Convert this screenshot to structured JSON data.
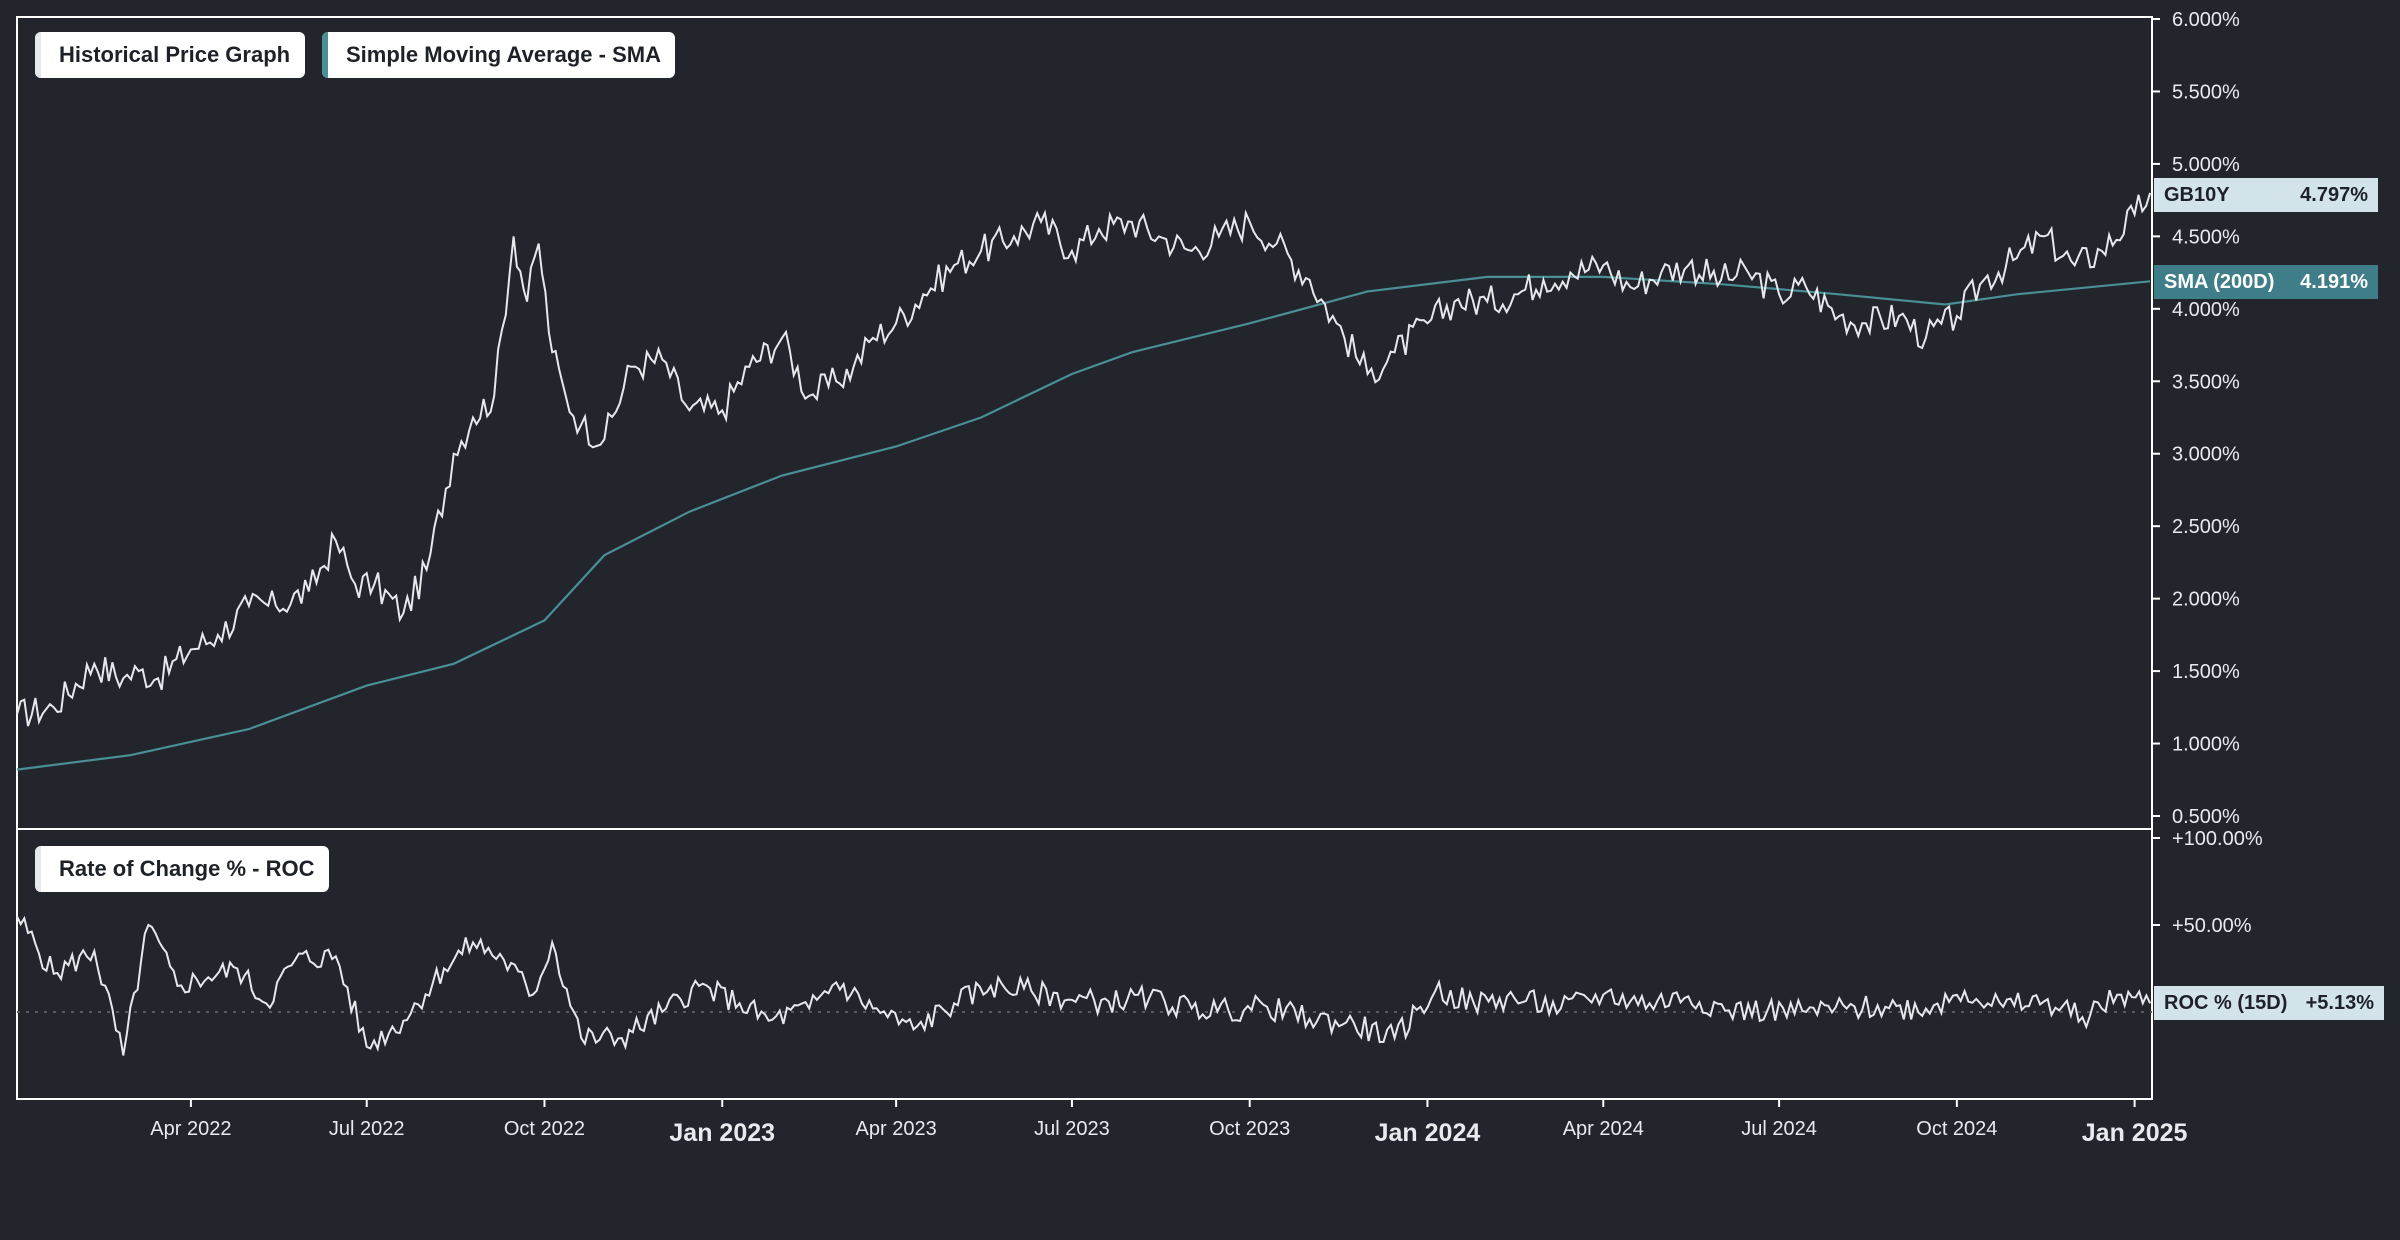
{
  "legends": {
    "price": "Historical Price Graph",
    "sma": "Simple Moving Average - SMA",
    "roc": "Rate of Change % - ROC"
  },
  "tags": {
    "price": {
      "label": "GB10Y",
      "value": "4.797%"
    },
    "sma": {
      "label": "SMA (200D)",
      "value": "4.191%"
    },
    "roc": {
      "label": "ROC % (15D)",
      "value": "+5.13%"
    }
  },
  "colors": {
    "background": "#22252b",
    "price_line": "#e6e8ec",
    "sma_line": "#4a8e96",
    "tag_light": "#d3e3ea",
    "tag_sma": "#3f7d88",
    "frame": "#ffffff"
  },
  "chart_data": [
    {
      "type": "line",
      "title": "",
      "xlabel": "",
      "ylabel": "",
      "ylim": [
        0.5,
        6.0
      ],
      "grid": false,
      "legend": "top-left",
      "y_tick_labels": [
        "6.000%",
        "5.500%",
        "5.000%",
        "4.500%",
        "4.000%",
        "3.500%",
        "3.000%",
        "2.500%",
        "2.000%",
        "1.500%",
        "1.000%",
        "0.500%"
      ],
      "x_tick_labels": [
        "Apr 2022",
        "Jul 2022",
        "Oct 2022",
        "Jan 2023",
        "Apr 2023",
        "Jul 2023",
        "Oct 2023",
        "Jan 2024",
        "Apr 2024",
        "Jul 2024",
        "Oct 2024",
        "Jan 2025"
      ],
      "x_tick_dates": [
        "2022-04-01",
        "2022-07-01",
        "2022-10-01",
        "2023-01-01",
        "2023-04-01",
        "2023-07-01",
        "2023-10-01",
        "2024-01-01",
        "2024-04-01",
        "2024-07-01",
        "2024-10-01",
        "2025-01-01"
      ],
      "x_range": [
        "2022-01-01",
        "2025-01-10"
      ],
      "series": [
        {
          "name": "GB10Y",
          "x": [
            "2022-01-01",
            "2022-01-20",
            "2022-02-10",
            "2022-02-25",
            "2022-03-05",
            "2022-03-15",
            "2022-04-01",
            "2022-04-15",
            "2022-05-01",
            "2022-05-15",
            "2022-06-01",
            "2022-06-15",
            "2022-06-25",
            "2022-07-05",
            "2022-07-20",
            "2022-08-01",
            "2022-08-15",
            "2022-08-25",
            "2022-09-05",
            "2022-09-15",
            "2022-09-22",
            "2022-09-28",
            "2022-10-05",
            "2022-10-12",
            "2022-10-20",
            "2022-11-01",
            "2022-11-15",
            "2022-12-01",
            "2022-12-15",
            "2023-01-01",
            "2023-01-15",
            "2023-02-01",
            "2023-02-15",
            "2023-03-01",
            "2023-03-10",
            "2023-03-20",
            "2023-04-01",
            "2023-04-15",
            "2023-05-01",
            "2023-05-15",
            "2023-06-01",
            "2023-06-15",
            "2023-07-01",
            "2023-07-15",
            "2023-08-01",
            "2023-08-15",
            "2023-09-01",
            "2023-09-15",
            "2023-10-01",
            "2023-10-15",
            "2023-11-01",
            "2023-11-15",
            "2023-12-01",
            "2023-12-15",
            "2024-01-01",
            "2024-01-15",
            "2024-02-01",
            "2024-02-15",
            "2024-03-01",
            "2024-03-15",
            "2024-04-01",
            "2024-04-15",
            "2024-05-01",
            "2024-05-15",
            "2024-06-01",
            "2024-06-15",
            "2024-07-01",
            "2024-07-15",
            "2024-08-01",
            "2024-08-15",
            "2024-09-01",
            "2024-09-15",
            "2024-10-01",
            "2024-10-15",
            "2024-11-01",
            "2024-11-15",
            "2024-12-01",
            "2024-12-15",
            "2025-01-01",
            "2025-01-09"
          ],
          "values": [
            1.2,
            1.25,
            1.55,
            1.45,
            1.5,
            1.45,
            1.65,
            1.75,
            1.95,
            1.95,
            2.05,
            2.4,
            2.1,
            2.1,
            1.9,
            2.2,
            3.0,
            3.25,
            3.4,
            4.5,
            4.05,
            4.45,
            3.7,
            3.4,
            3.2,
            3.1,
            3.6,
            3.65,
            3.3,
            3.3,
            3.6,
            3.8,
            3.4,
            3.5,
            3.6,
            3.8,
            3.9,
            4.1,
            4.3,
            4.4,
            4.5,
            4.6,
            4.4,
            4.55,
            4.6,
            4.5,
            4.4,
            4.5,
            4.6,
            4.45,
            4.2,
            3.9,
            3.55,
            3.7,
            3.9,
            4.05,
            4.05,
            4.1,
            4.2,
            4.25,
            4.3,
            4.15,
            4.25,
            4.3,
            4.2,
            4.25,
            4.1,
            4.15,
            3.95,
            3.9,
            3.95,
            3.8,
            3.95,
            4.2,
            4.35,
            4.5,
            4.3,
            4.4,
            4.65,
            4.8
          ]
        },
        {
          "name": "SMA (200D)",
          "x": [
            "2022-01-01",
            "2022-03-01",
            "2022-05-01",
            "2022-07-01",
            "2022-08-15",
            "2022-10-01",
            "2022-11-01",
            "2022-12-15",
            "2023-02-01",
            "2023-04-01",
            "2023-05-15",
            "2023-07-01",
            "2023-08-01",
            "2023-10-01",
            "2023-12-01",
            "2024-02-01",
            "2024-04-01",
            "2024-06-01",
            "2024-08-01",
            "2024-09-25",
            "2024-11-01",
            "2025-01-09"
          ],
          "values": [
            0.82,
            0.92,
            1.1,
            1.4,
            1.55,
            1.85,
            2.3,
            2.6,
            2.85,
            3.05,
            3.25,
            3.55,
            3.7,
            3.9,
            4.12,
            4.22,
            4.22,
            4.17,
            4.1,
            4.03,
            4.1,
            4.19
          ]
        }
      ]
    },
    {
      "type": "line",
      "title": "",
      "xlabel": "",
      "ylabel": "",
      "ylim": [
        -50,
        100
      ],
      "grid": false,
      "legend": "top-left",
      "y_tick_labels": [
        "+100.00%",
        "+50.00%"
      ],
      "series": [
        {
          "name": "ROC % (15D)",
          "x": [
            "2022-01-01",
            "2022-01-20",
            "2022-02-10",
            "2022-02-25",
            "2022-03-10",
            "2022-03-25",
            "2022-04-10",
            "2022-04-25",
            "2022-05-10",
            "2022-05-25",
            "2022-06-15",
            "2022-07-01",
            "2022-07-20",
            "2022-08-10",
            "2022-08-25",
            "2022-09-10",
            "2022-09-25",
            "2022-10-05",
            "2022-10-20",
            "2022-11-10",
            "2022-12-01",
            "2022-12-20",
            "2023-01-10",
            "2023-01-25",
            "2023-02-15",
            "2023-03-01",
            "2023-03-20",
            "2023-04-10",
            "2023-05-01",
            "2023-05-20",
            "2023-06-10",
            "2023-07-01",
            "2023-07-20",
            "2023-08-10",
            "2023-09-01",
            "2023-09-20",
            "2023-10-10",
            "2023-11-01",
            "2023-11-20",
            "2023-12-15",
            "2024-01-05",
            "2024-01-25",
            "2024-02-15",
            "2024-03-10",
            "2024-04-01",
            "2024-04-25",
            "2024-05-15",
            "2024-06-05",
            "2024-06-25",
            "2024-07-15",
            "2024-08-05",
            "2024-08-25",
            "2024-09-15",
            "2024-10-05",
            "2024-10-25",
            "2024-11-15",
            "2024-12-05",
            "2024-12-25",
            "2025-01-09"
          ],
          "values": [
            55,
            22,
            35,
            -25,
            50,
            15,
            20,
            25,
            5,
            30,
            32,
            -20,
            -5,
            25,
            40,
            30,
            10,
            40,
            -15,
            -15,
            0,
            15,
            5,
            -5,
            2,
            17,
            2,
            -10,
            5,
            15,
            12,
            7,
            6,
            8,
            2,
            1,
            3,
            -4,
            -6,
            -15,
            12,
            5,
            8,
            2,
            10,
            5,
            9,
            1,
            1,
            0,
            2,
            3,
            2,
            12,
            3,
            6,
            -3,
            10,
            5
          ]
        }
      ]
    }
  ]
}
